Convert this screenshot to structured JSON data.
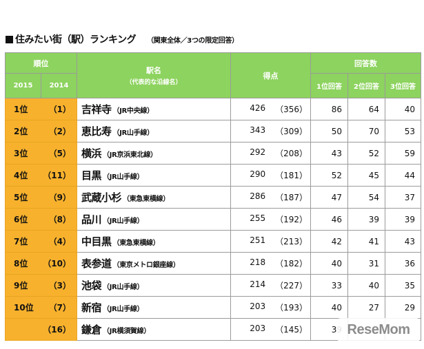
{
  "title": "住みたい街（駅）ランキング",
  "note": "（関東全体／3つの限定回答）",
  "header": {
    "rank": "順位",
    "year2015": "2015",
    "year2014": "2014",
    "station": "駅名",
    "station_sub": "（代表的な沿線名）",
    "score": "得点",
    "answers": "回答数",
    "first": "1位回答",
    "second": "2位回答",
    "third": "3位回答"
  },
  "rows": [
    {
      "rank2015": "1位",
      "rank2014": "（1）",
      "name": "吉祥寺",
      "line": "（JR中央線）",
      "score": "426",
      "prev": "（356）",
      "first": "86",
      "second": "64",
      "third": "40"
    },
    {
      "rank2015": "2位",
      "rank2014": "（2）",
      "name": "恵比寿",
      "line": "（JR山手線）",
      "score": "343",
      "prev": "（309）",
      "first": "50",
      "second": "70",
      "third": "53"
    },
    {
      "rank2015": "3位",
      "rank2014": "（5）",
      "name": "横浜",
      "line": "（JR京浜東北線）",
      "score": "292",
      "prev": "（208）",
      "first": "43",
      "second": "52",
      "third": "59"
    },
    {
      "rank2015": "4位",
      "rank2014": "（11）",
      "name": "目黒",
      "line": "（JR山手線）",
      "score": "290",
      "prev": "（181）",
      "first": "52",
      "second": "45",
      "third": "44"
    },
    {
      "rank2015": "5位",
      "rank2014": "（9）",
      "name": "武蔵小杉",
      "line": "（東急東横線）",
      "score": "286",
      "prev": "（187）",
      "first": "47",
      "second": "54",
      "third": "37"
    },
    {
      "rank2015": "6位",
      "rank2014": "（8）",
      "name": "品川",
      "line": "（JR山手線）",
      "score": "255",
      "prev": "（192）",
      "first": "46",
      "second": "39",
      "third": "39"
    },
    {
      "rank2015": "7位",
      "rank2014": "（4）",
      "name": "中目黒",
      "line": "（東急東横線）",
      "score": "251",
      "prev": "（213）",
      "first": "42",
      "second": "41",
      "third": "43"
    },
    {
      "rank2015": "8位",
      "rank2014": "（10）",
      "name": "表参道",
      "line": "（東京メトロ銀座線）",
      "score": "218",
      "prev": "（182）",
      "first": "40",
      "second": "31",
      "third": "36"
    },
    {
      "rank2015": "9位",
      "rank2014": "（3）",
      "name": "池袋",
      "line": "（JR山手線）",
      "score": "214",
      "prev": "（227）",
      "first": "33",
      "second": "40",
      "third": "35"
    },
    {
      "rank2015": "10位",
      "rank2014": "（7）",
      "name": "新宿",
      "line": "（JR山手線）",
      "score": "203",
      "prev": "（193）",
      "first": "40",
      "second": "27",
      "third": "29"
    },
    {
      "rank2015": "",
      "rank2014": "（16）",
      "name": "鎌倉",
      "line": "（JR横須賀線）",
      "score": "203",
      "prev": "（145）",
      "first": "39",
      "second": "",
      "third": ""
    }
  ],
  "watermark": "ReseMom"
}
